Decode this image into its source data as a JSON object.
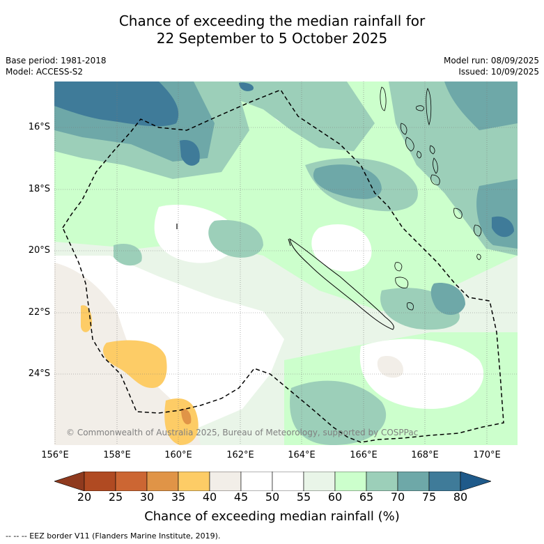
{
  "header": {
    "title_line1": "Chance of exceeding the median rainfall for",
    "title_line2": "22 September to 5 October 2025",
    "base_period": "Base period: 1981-2018",
    "model": "Model: ACCESS-S2",
    "model_run": "Model run: 08/09/2025",
    "issued": "Issued: 10/09/2025"
  },
  "map": {
    "copyright": "© Commonwealth of Australia 2025, Bureau of Meteorology, supported by COSPPac",
    "lat_ticks": [
      "16°S",
      "18°S",
      "20°S",
      "22°S",
      "24°S"
    ],
    "lon_ticks": [
      "156°E",
      "158°E",
      "160°E",
      "162°E",
      "164°E",
      "166°E",
      "168°E",
      "170°E"
    ]
  },
  "colorbar": {
    "title": "Chance of exceeding median rainfall (%)",
    "tick_labels": [
      "20",
      "25",
      "30",
      "35",
      "40",
      "45",
      "50",
      "55",
      "60",
      "65",
      "70",
      "75",
      "80"
    ],
    "colors": [
      "#8f3a1e",
      "#b04a22",
      "#cc6633",
      "#e09447",
      "#fdcc66",
      "#f2eee8",
      "#ffffff",
      "#ffffff",
      "#e9f5e8",
      "#ccffcc",
      "#9ccfb9",
      "#6ea8a8",
      "#3f7b99",
      "#1f5a8a"
    ]
  },
  "footnote": "--  --  -- EEZ border V11 (Flanders Marine Institute, 2019)."
}
